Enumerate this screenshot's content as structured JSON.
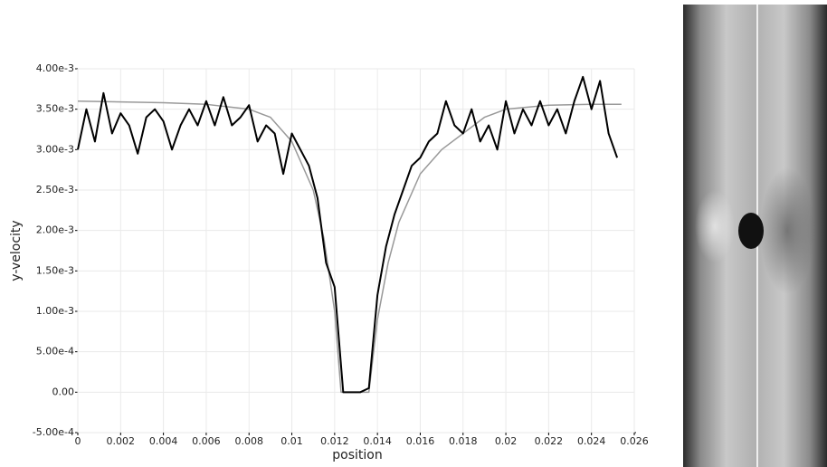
{
  "chart_data": {
    "type": "line",
    "x_label": "position",
    "y_label": "y-velocity",
    "xlim": [
      0,
      0.026
    ],
    "ylim": [
      -0.0005,
      0.004
    ],
    "xticks": [
      0,
      0.002,
      0.004,
      0.006,
      0.008,
      0.01,
      0.012,
      0.014,
      0.016,
      0.018,
      0.02,
      0.022,
      0.024,
      0.026
    ],
    "yticks": [
      {
        "value": -0.0005,
        "label": "-5.00e-4"
      },
      {
        "value": 0,
        "label": "0.00"
      },
      {
        "value": 0.0005,
        "label": "5.00e-4"
      },
      {
        "value": 0.001,
        "label": "1.00e-3"
      },
      {
        "value": 0.0015,
        "label": "1.50e-3"
      },
      {
        "value": 0.002,
        "label": "2.00e-3"
      },
      {
        "value": 0.0025,
        "label": "2.50e-3"
      },
      {
        "value": 0.003,
        "label": "3.00e-3"
      },
      {
        "value": 0.0035,
        "label": "3.50e-3"
      },
      {
        "value": 0.004,
        "label": "4.00e-3"
      }
    ],
    "grid": true,
    "series": [
      {
        "color": "#999999",
        "x": [
          0,
          0.002,
          0.004,
          0.006,
          0.008,
          0.009,
          0.01,
          0.011,
          0.0115,
          0.012,
          0.0123,
          0.0136,
          0.014,
          0.0145,
          0.015,
          0.016,
          0.017,
          0.018,
          0.019,
          0.02,
          0.022,
          0.024,
          0.0254
        ],
        "values": [
          0.0036,
          0.00359,
          0.00358,
          0.00356,
          0.0035,
          0.0034,
          0.0031,
          0.0025,
          0.0019,
          0.001,
          0,
          0,
          0.0009,
          0.0016,
          0.0021,
          0.0027,
          0.003,
          0.0032,
          0.0034,
          0.0035,
          0.00355,
          0.00356,
          0.00356
        ]
      },
      {
        "color": "#000000",
        "x": [
          0,
          0.0004,
          0.0008,
          0.0012,
          0.0016,
          0.002,
          0.0024,
          0.0028,
          0.0032,
          0.0036,
          0.004,
          0.0044,
          0.0048,
          0.0052,
          0.0056,
          0.006,
          0.0064,
          0.0068,
          0.0072,
          0.0076,
          0.008,
          0.0084,
          0.0088,
          0.0092,
          0.0096,
          0.01,
          0.0104,
          0.0108,
          0.0112,
          0.0116,
          0.012,
          0.0124,
          0.0128,
          0.0132,
          0.0136,
          0.014,
          0.0144,
          0.0148,
          0.0152,
          0.0156,
          0.016,
          0.0164,
          0.0168,
          0.0172,
          0.0176,
          0.018,
          0.0184,
          0.0188,
          0.0192,
          0.0196,
          0.02,
          0.0204,
          0.0208,
          0.0212,
          0.0216,
          0.022,
          0.0224,
          0.0228,
          0.0232,
          0.0236,
          0.024,
          0.0244,
          0.0248,
          0.0252
        ],
        "values": [
          0.003,
          0.0035,
          0.0031,
          0.0037,
          0.0032,
          0.00345,
          0.0033,
          0.00295,
          0.0034,
          0.0035,
          0.00335,
          0.003,
          0.0033,
          0.0035,
          0.0033,
          0.0036,
          0.0033,
          0.00365,
          0.0033,
          0.0034,
          0.00355,
          0.0031,
          0.0033,
          0.0032,
          0.0027,
          0.0032,
          0.003,
          0.0028,
          0.0024,
          0.0016,
          0.0013,
          0,
          0,
          0,
          5e-05,
          0.0012,
          0.0018,
          0.0022,
          0.0025,
          0.0028,
          0.0029,
          0.0031,
          0.0032,
          0.0036,
          0.0033,
          0.0032,
          0.0035,
          0.0031,
          0.0033,
          0.003,
          0.0036,
          0.0032,
          0.0035,
          0.0033,
          0.0036,
          0.0033,
          0.0035,
          0.0032,
          0.0036,
          0.0039,
          0.0035,
          0.00385,
          0.0032,
          0.0029
        ]
      }
    ]
  }
}
